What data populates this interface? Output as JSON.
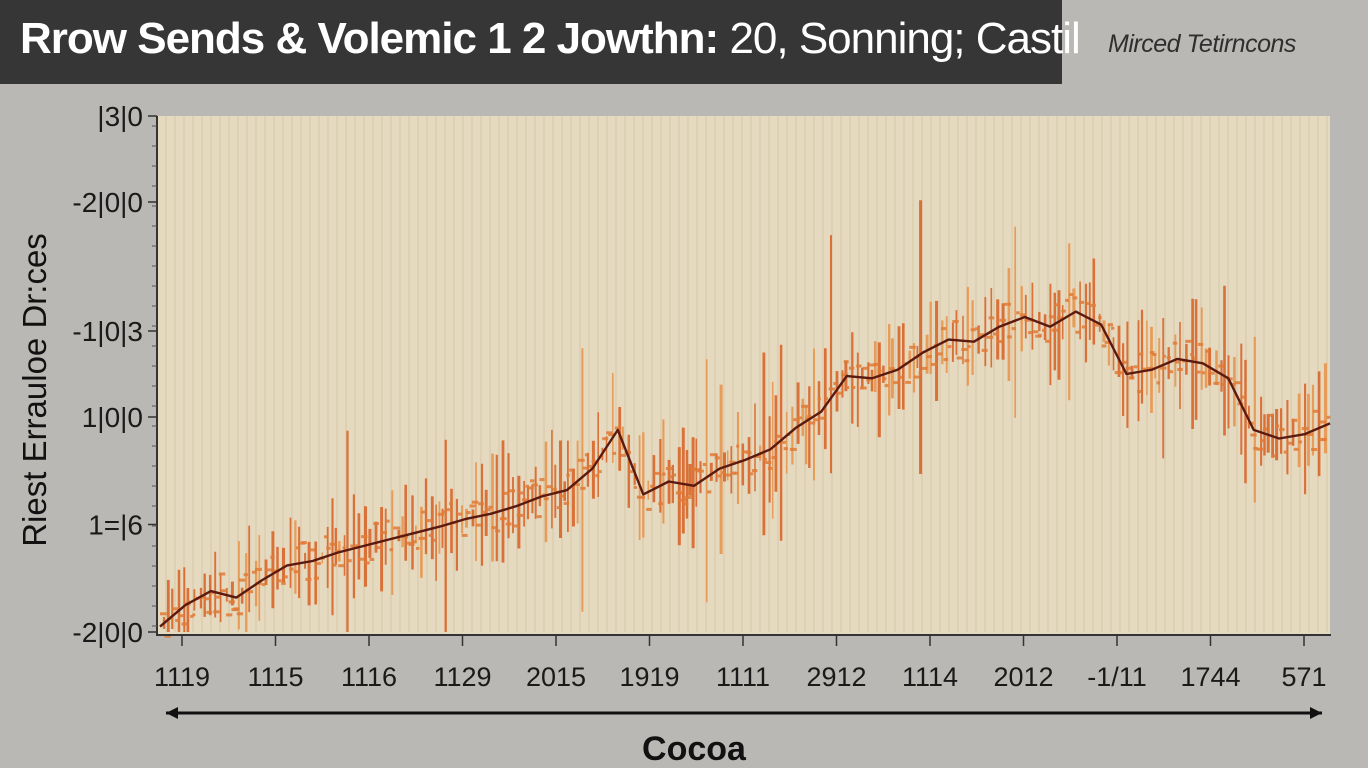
{
  "header": {
    "title_bold": "Rrow Sends & Volemic 1 2 Jowthn:",
    "title_rest": " 20, Sonning; Castil",
    "subtitle": "Mirced Tetirncons"
  },
  "chart_data": {
    "type": "line",
    "title": "Rrow Sends & Volemic 1 2 Jowthn: 20, Sonning; Castil",
    "subtitle": "Mirced Tetirncons",
    "xlabel": "Cocoa",
    "ylabel": "Riest Errauloe Dr:ces",
    "x_ticks": [
      "1119",
      "1115",
      "1116",
      "1129",
      "2015",
      "1919",
      "1111",
      "2912",
      "1114",
      "2012",
      "-1/11",
      "1744",
      "571"
    ],
    "y_ticks": [
      {
        "label": "-2|0|0",
        "value": 0
      },
      {
        "label": "1=|6",
        "value": 1
      },
      {
        "label": "1|0|0",
        "value": 2
      },
      {
        "label": "-1|0|3",
        "value": 2.8
      },
      {
        "label": "-2|0|0",
        "value": 4
      },
      {
        "label": "|3|0",
        "value": 4.8
      }
    ],
    "ylim": [
      0,
      4.8
    ],
    "grid": "vertical",
    "series": [
      {
        "values": [
          0.05,
          0.25,
          0.38,
          0.32,
          0.48,
          0.62,
          0.66,
          0.74,
          0.8,
          0.86,
          0.92,
          0.98,
          1.05,
          1.1,
          1.17,
          1.26,
          1.32,
          1.52,
          1.88,
          1.28,
          1.4,
          1.36,
          1.52,
          1.6,
          1.7,
          1.9,
          2.05,
          2.38,
          2.36,
          2.44,
          2.6,
          2.72,
          2.7,
          2.84,
          2.93,
          2.84,
          2.98,
          2.86,
          2.4,
          2.44,
          2.54,
          2.5,
          2.36,
          1.88,
          1.8,
          1.84,
          1.94
        ],
        "color": "#5a1a10"
      }
    ],
    "colors": {
      "plot_background": "#e5d9bf",
      "spikes": "#d9662a",
      "line": "#5a1a10"
    }
  }
}
